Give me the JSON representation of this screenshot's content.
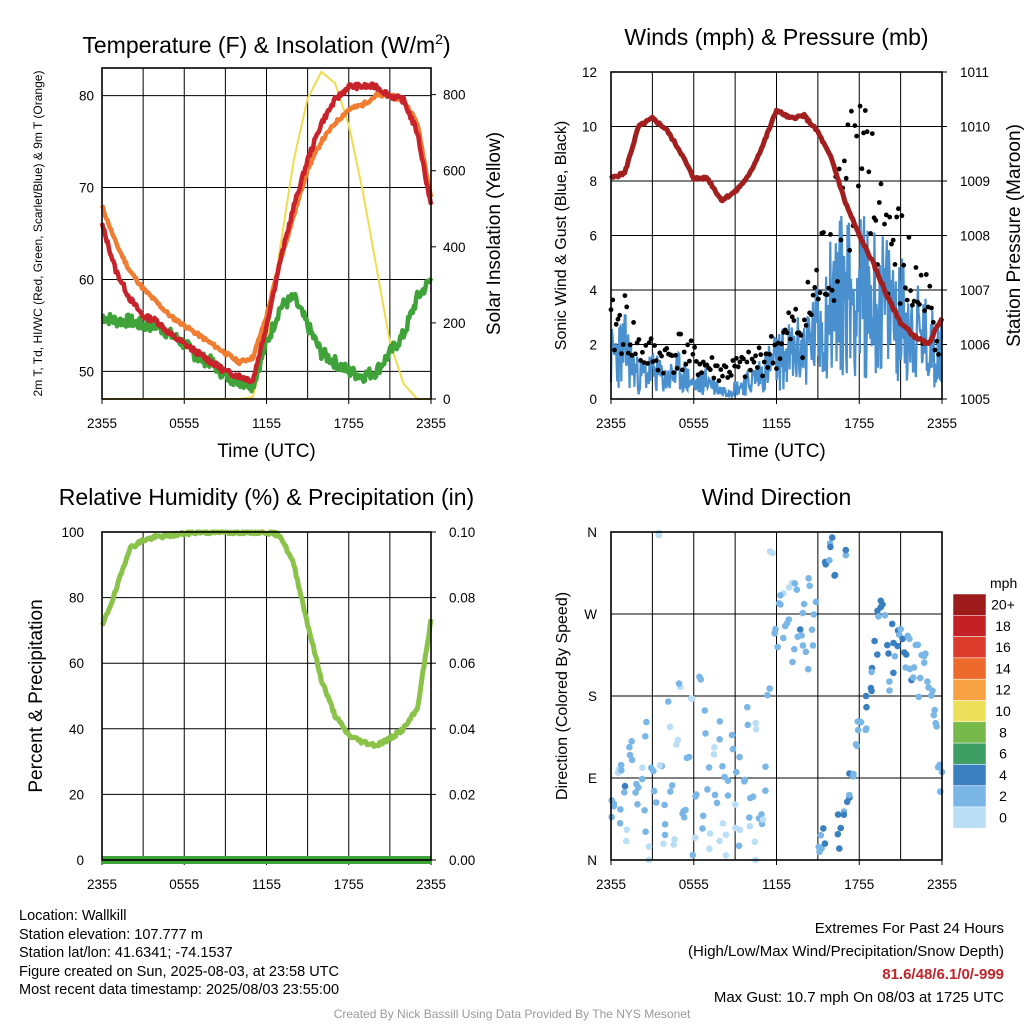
{
  "chart_data": [
    {
      "type": "line",
      "title": "Temperature (F) & Insolation (W/m²)",
      "xlabel": "Time (UTC)",
      "ylabel_left": "2m T, Td, HI/WC (Red, Green, Scarlet/Blue) & 9m T (Orange)",
      "ylabel_right": "Solar Insolation (Yellow)",
      "x_ticks": [
        "2355",
        "0555",
        "1155",
        "1755",
        "2355"
      ],
      "ylim_left": [
        47,
        83
      ],
      "ylim_right": [
        0,
        870
      ],
      "y_ticks_left": [
        50,
        60,
        70,
        80
      ],
      "y_ticks_right": [
        0,
        200,
        400,
        600,
        800
      ],
      "x_hours": [
        0,
        1,
        2,
        3,
        4,
        5,
        6,
        7,
        8,
        9,
        10,
        11,
        12,
        13,
        14,
        15,
        16,
        17,
        18,
        19,
        20,
        21,
        22,
        23,
        24
      ],
      "series": [
        {
          "axis": "left",
          "color": "#c8232a",
          "values": [
            66,
            61,
            58,
            56,
            55.5,
            54,
            53,
            52,
            51,
            50,
            49.5,
            49,
            55,
            62,
            68,
            73,
            77,
            79.5,
            81,
            81,
            81,
            80,
            79.5,
            76,
            68
          ]
        },
        {
          "axis": "left",
          "color": "#f07d32",
          "values": [
            68,
            64,
            61,
            59,
            57.5,
            56,
            55,
            54,
            53,
            52,
            51,
            51.5,
            56,
            62,
            67,
            72,
            75,
            77,
            78.5,
            79,
            80,
            80,
            79.5,
            77,
            69
          ]
        },
        {
          "axis": "left",
          "color": "#3fa33a",
          "values": [
            56,
            55.5,
            55.5,
            55,
            55,
            54,
            53,
            51.5,
            51,
            49.5,
            49,
            48.5,
            53,
            57,
            58,
            55,
            52,
            51,
            50,
            49.5,
            50,
            52,
            54,
            58,
            60
          ]
        },
        {
          "axis": "right",
          "color": "#f2dc4b",
          "values": [
            0,
            0,
            0,
            0,
            0,
            0,
            0,
            0,
            0,
            0,
            0,
            5,
            150,
            400,
            630,
            790,
            860,
            830,
            720,
            550,
            350,
            150,
            40,
            0,
            0
          ]
        }
      ]
    },
    {
      "type": "line",
      "title": "Winds (mph) & Pressure (mb)",
      "xlabel": "Time (UTC)",
      "ylabel_left": "Sonic Wind & Gust (Blue, Black)",
      "ylabel_right": "Station Pressure (Maroon)",
      "x_ticks": [
        "2355",
        "0555",
        "1155",
        "1755",
        "2355"
      ],
      "ylim_left": [
        0,
        12
      ],
      "ylim_right": [
        1005,
        1011
      ],
      "y_ticks_left": [
        0,
        2,
        4,
        6,
        8,
        10,
        12
      ],
      "y_ticks_right": [
        1005,
        1006,
        1007,
        1008,
        1009,
        1010,
        1011
      ],
      "x_hours": [
        0,
        1,
        2,
        3,
        4,
        5,
        6,
        7,
        8,
        9,
        10,
        11,
        12,
        13,
        14,
        15,
        16,
        17,
        18,
        19,
        20,
        21,
        22,
        23,
        24
      ],
      "series": [
        {
          "axis": "left",
          "color": "#4a90cf",
          "values": [
            1.5,
            1.8,
            0.8,
            1.0,
            0.7,
            1.0,
            0.5,
            0.7,
            0.3,
            0.4,
            0.6,
            1.0,
            1.4,
            1.6,
            1.8,
            2.5,
            3.5,
            4.0,
            3.8,
            3.6,
            3.4,
            3.0,
            2.5,
            2.0,
            1.8
          ]
        },
        {
          "axis": "left",
          "color": "#000000",
          "values": [
            2.5,
            2.8,
            1.8,
            1.6,
            1.5,
            1.8,
            1.4,
            1.2,
            1.0,
            1.1,
            1.2,
            1.5,
            1.8,
            2.4,
            2.8,
            4.0,
            6.0,
            8.5,
            8.0,
            7.0,
            6.0,
            5.0,
            4.0,
            3.2,
            2.8
          ]
        },
        {
          "axis": "right",
          "color": "#a11f1f",
          "values": [
            1009.05,
            1009.15,
            1010.0,
            1010.15,
            1009.95,
            1009.55,
            1009.05,
            1009.05,
            1008.65,
            1008.8,
            1009.1,
            1009.65,
            1010.3,
            1010.15,
            1010.2,
            1009.9,
            1009.4,
            1008.6,
            1008.0,
            1007.5,
            1006.9,
            1006.4,
            1006.15,
            1006.0,
            1006.5
          ]
        }
      ]
    },
    {
      "type": "line",
      "title": "Relative Humidity (%) & Precipitation (in)",
      "ylabel_left": "Percent & Precipitation",
      "x_ticks": [
        "2355",
        "0555",
        "1155",
        "1755",
        "2355"
      ],
      "ylim_left": [
        0,
        100
      ],
      "ylim_right": [
        0,
        0.1
      ],
      "y_ticks_left": [
        0,
        20,
        40,
        60,
        80,
        100
      ],
      "y_ticks_right": [
        "0.00",
        "0.02",
        "0.04",
        "0.06",
        "0.08",
        "0.10"
      ],
      "x_hours": [
        0,
        1,
        2,
        3,
        4,
        5,
        6,
        7,
        8,
        9,
        10,
        11,
        12,
        13,
        14,
        15,
        16,
        17,
        18,
        19,
        20,
        21,
        22,
        23,
        24
      ],
      "series": [
        {
          "axis": "left",
          "color": "#8bc34a",
          "values": [
            71,
            82,
            95,
            97.5,
            98.5,
            99,
            99.5,
            100,
            100,
            100,
            100,
            100,
            100,
            99,
            90,
            72,
            55,
            44,
            38,
            36,
            35,
            37,
            40,
            46,
            73
          ]
        },
        {
          "axis": "right",
          "color": "#3fa33a",
          "values": [
            0,
            0,
            0,
            0,
            0,
            0,
            0,
            0,
            0,
            0,
            0,
            0,
            0,
            0,
            0,
            0,
            0,
            0,
            0,
            0,
            0,
            0,
            0,
            0,
            0
          ]
        }
      ]
    },
    {
      "type": "scatter",
      "title": "Wind Direction",
      "ylabel_left": "Direction (Colored By Speed)",
      "x_ticks": [
        "2355",
        "0555",
        "1155",
        "1755",
        "2355"
      ],
      "y_ticks_left": [
        "N",
        "E",
        "S",
        "W",
        "N"
      ],
      "ylim_left": [
        0,
        360
      ],
      "legend_title": "mph",
      "legend_labels": [
        "20+",
        "18",
        "16",
        "14",
        "12",
        "10",
        "8",
        "6",
        "4",
        "2",
        "0"
      ],
      "legend_colors": [
        "#9e1b1b",
        "#c42127",
        "#dc3a2a",
        "#ee6a2c",
        "#f7a143",
        "#ece05a",
        "#77ba4b",
        "#3f9e64",
        "#3a7fc0",
        "#7ab6e6",
        "#b9def5"
      ],
      "points_hour_dir_speed": [
        [
          0.1,
          60,
          1.5
        ],
        [
          0.3,
          70,
          2
        ],
        [
          0.5,
          90,
          1
        ],
        [
          0.6,
          50,
          2.5
        ],
        [
          0.8,
          100,
          1.5
        ],
        [
          1.0,
          80,
          3
        ],
        [
          1.2,
          30,
          1
        ],
        [
          1.4,
          110,
          2
        ],
        [
          1.6,
          120,
          1.5
        ],
        [
          1.8,
          85,
          2
        ],
        [
          2.0,
          70,
          2.5
        ],
        [
          2.2,
          95,
          1
        ],
        [
          2.4,
          40,
          1.5
        ],
        [
          2.6,
          140,
          1
        ],
        [
          2.8,
          10,
          0.5
        ],
        [
          3.0,
          90,
          2
        ],
        [
          3.2,
          65,
          1.5
        ],
        [
          3.4,
          355,
          0.5
        ],
        [
          3.6,
          105,
          1
        ],
        [
          3.8,
          20,
          1
        ],
        [
          4.0,
          50,
          2
        ],
        [
          4.2,
          160,
          1
        ],
        [
          4.4,
          80,
          1.5
        ],
        [
          4.6,
          30,
          0.5
        ],
        [
          4.8,
          130,
          1
        ],
        [
          5.0,
          200,
          1
        ],
        [
          5.2,
          60,
          2
        ],
        [
          5.4,
          40,
          1
        ],
        [
          5.6,
          100,
          1.5
        ],
        [
          5.8,
          185,
          1
        ],
        [
          6.0,
          10,
          1
        ],
        [
          6.2,
          70,
          2
        ],
        [
          6.4,
          210,
          1
        ],
        [
          6.6,
          45,
          1.5
        ],
        [
          6.8,
          150,
          1
        ],
        [
          7.0,
          90,
          2
        ],
        [
          7.2,
          20,
          0.5
        ],
        [
          7.4,
          120,
          1
        ],
        [
          7.6,
          60,
          1.5
        ],
        [
          7.8,
          140,
          1
        ],
        [
          8.0,
          35,
          1
        ],
        [
          8.2,
          100,
          1.5
        ],
        [
          8.4,
          15,
          0.5
        ],
        [
          8.6,
          75,
          2
        ],
        [
          8.8,
          130,
          1
        ],
        [
          9.0,
          50,
          1
        ],
        [
          9.2,
          110,
          2
        ],
        [
          9.4,
          25,
          1
        ],
        [
          9.6,
          80,
          1.5
        ],
        [
          9.8,
          160,
          1
        ],
        [
          10.0,
          45,
          1
        ],
        [
          10.2,
          70,
          1.5
        ],
        [
          10.4,
          10,
          0.5
        ],
        [
          10.6,
          140,
          1
        ],
        [
          10.8,
          60,
          1.5
        ],
        [
          11.0,
          30,
          1
        ],
        [
          11.2,
          90,
          2
        ],
        [
          11.4,
          180,
          1.5
        ],
        [
          11.6,
          330,
          0.5
        ],
        [
          11.8,
          260,
          2
        ],
        [
          12.0,
          240,
          1.5
        ],
        [
          12.2,
          280,
          2
        ],
        [
          12.4,
          300,
          1
        ],
        [
          12.6,
          250,
          2.5
        ],
        [
          12.8,
          270,
          2
        ],
        [
          13.0,
          310,
          1
        ],
        [
          13.2,
          230,
          2
        ],
        [
          13.4,
          290,
          1.5
        ],
        [
          13.6,
          260,
          3
        ],
        [
          13.8,
          240,
          2
        ],
        [
          14.0,
          280,
          2.5
        ],
        [
          14.2,
          220,
          2
        ],
        [
          14.4,
          300,
          1.5
        ],
        [
          14.6,
          250,
          2
        ],
        [
          14.8,
          270,
          2.5
        ],
        [
          15.0,
          5,
          3
        ],
        [
          15.2,
          15,
          2.5
        ],
        [
          15.4,
          30,
          3
        ],
        [
          15.6,
          320,
          3.5
        ],
        [
          15.8,
          340,
          3
        ],
        [
          16.0,
          350,
          3.5
        ],
        [
          16.2,
          310,
          3
        ],
        [
          16.4,
          35,
          4.5
        ],
        [
          16.6,
          25,
          3.5
        ],
        [
          16.8,
          55,
          3
        ],
        [
          17.0,
          345,
          3
        ],
        [
          17.2,
          70,
          3.5
        ],
        [
          17.4,
          80,
          3
        ],
        [
          17.6,
          100,
          2.5
        ],
        [
          17.8,
          120,
          3
        ],
        [
          18.0,
          140,
          2.5
        ],
        [
          18.2,
          160,
          3
        ],
        [
          18.4,
          130,
          2.5
        ],
        [
          18.6,
          180,
          3
        ],
        [
          18.8,
          200,
          3.5
        ],
        [
          19.0,
          220,
          3
        ],
        [
          19.2,
          240,
          3.5
        ],
        [
          19.4,
          260,
          3
        ],
        [
          19.6,
          290,
          3.5
        ],
        [
          19.8,
          270,
          3
        ],
        [
          20.0,
          230,
          3.5
        ],
        [
          20.2,
          200,
          3
        ],
        [
          20.4,
          250,
          3.5
        ],
        [
          20.6,
          210,
          3
        ],
        [
          20.8,
          240,
          3.5
        ],
        [
          21.0,
          260,
          3
        ],
        [
          21.2,
          230,
          3.5
        ],
        [
          21.4,
          220,
          3
        ],
        [
          21.6,
          250,
          2.5
        ],
        [
          21.8,
          200,
          3
        ],
        [
          22.0,
          215,
          2.5
        ],
        [
          22.2,
          240,
          2.5
        ],
        [
          22.4,
          190,
          2
        ],
        [
          22.6,
          210,
          2
        ],
        [
          22.8,
          230,
          2
        ],
        [
          23.0,
          200,
          2
        ],
        [
          23.2,
          185,
          2
        ],
        [
          23.4,
          170,
          2
        ],
        [
          23.6,
          150,
          2
        ],
        [
          23.8,
          90,
          2
        ],
        [
          24.0,
          85,
          2.5
        ]
      ]
    }
  ],
  "info_left": {
    "location": "Location: Wallkill",
    "elevation": "Station elevation: 107.777 m",
    "latlon": "Station lat/lon: 41.6341; -74.1537",
    "created": "Figure created on Sun, 2025-08-03, at 23:58 UTC",
    "recent": "Most recent data timestamp: 2025/08/03 23:55:00"
  },
  "info_right": {
    "line1": "Extremes For Past 24 Hours",
    "line2": "(High/Low/Max Wind/Precipitation/Snow Depth)",
    "extremes": "81.6/48/6.1/0/-999",
    "gust": "Max Gust: 10.7 mph On 08/03 at 1725 UTC"
  },
  "credit": "Created By Nick Bassill Using Data Provided By The NYS Mesonet"
}
